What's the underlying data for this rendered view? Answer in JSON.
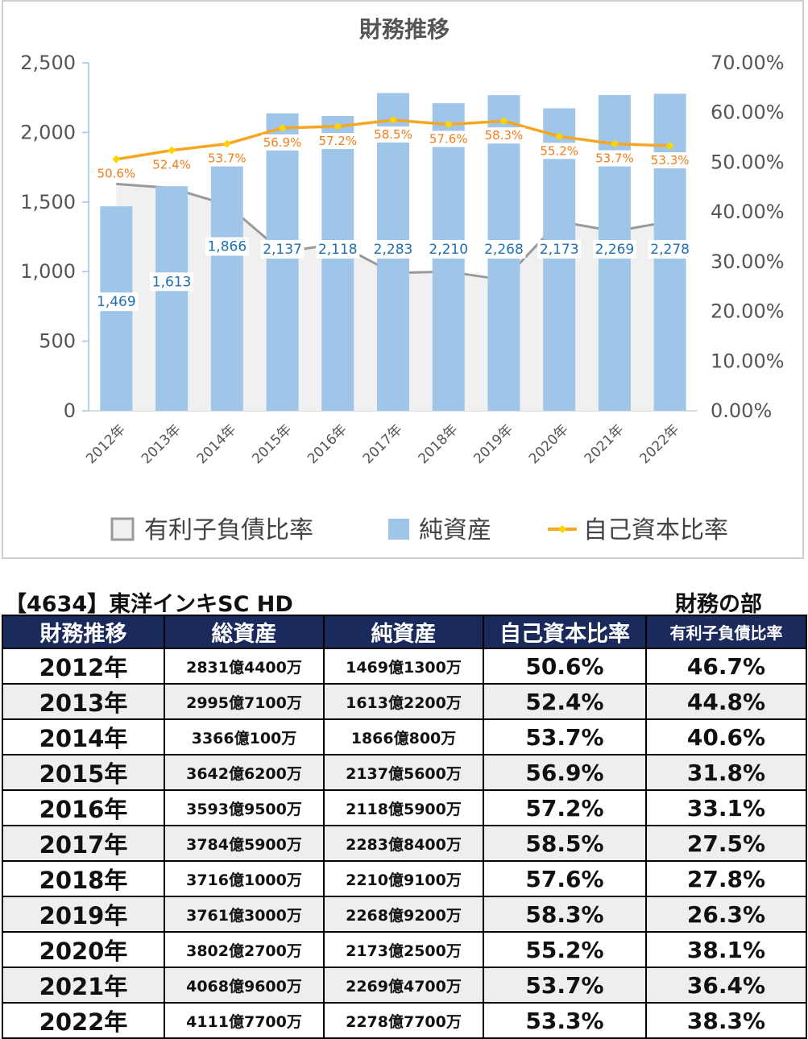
{
  "chart_data": {
    "type": "bar",
    "title": "財務推移",
    "categories": [
      "2012年",
      "2013年",
      "2014年",
      "2015年",
      "2016年",
      "2017年",
      "2018年",
      "2019年",
      "2020年",
      "2021年",
      "2022年"
    ],
    "y_left_ticks": [
      "2,500",
      "2,000",
      "1,500",
      "1,000",
      "500",
      "0"
    ],
    "y_right_ticks": [
      "70.00%",
      "60.00%",
      "50.00%",
      "40.00%",
      "30.00%",
      "20.00%",
      "10.00%",
      "0.00%"
    ],
    "ylim_left": [
      0,
      2500
    ],
    "ylim_right": [
      0,
      70
    ],
    "series": [
      {
        "name": "有利子負債比率",
        "kind": "area",
        "axis": "left",
        "color": "#999999",
        "values": [
          1630,
          1600,
          1480,
          1140,
          1200,
          990,
          1000,
          940,
          1360,
          1290,
          1360
        ]
      },
      {
        "name": "純資産",
        "kind": "bar",
        "axis": "left",
        "color": "#9fc5e8",
        "values": [
          1469,
          1613,
          1866,
          2137,
          2118,
          2283,
          2210,
          2268,
          2173,
          2269,
          2278
        ],
        "labels": [
          "1,469",
          "1,613",
          "1,866",
          "2,137",
          "2,118",
          "2,283",
          "2,210",
          "2,268",
          "2,173",
          "2,269",
          "2,278"
        ]
      },
      {
        "name": "自己資本比率",
        "kind": "line",
        "axis": "right",
        "color": "#f5a623",
        "values": [
          50.6,
          52.4,
          53.7,
          56.9,
          57.2,
          58.5,
          57.6,
          58.3,
          55.2,
          53.7,
          53.3
        ],
        "labels": [
          "50.6%",
          "52.4%",
          "53.7%",
          "56.9%",
          "57.2%",
          "58.5%",
          "57.6%",
          "58.3%",
          "55.2%",
          "53.7%",
          "53.3%"
        ]
      }
    ],
    "legend_position": "bottom"
  },
  "table": {
    "title": "【4634】東洋インキSC HD",
    "dept": "財務の部",
    "headers": [
      "財務推移",
      "総資産",
      "純資産",
      "自己資本比率",
      "有利子負債比率"
    ],
    "rows": [
      [
        "2012年",
        "2831億4400万",
        "1469億1300万",
        "50.6%",
        "46.7%"
      ],
      [
        "2013年",
        "2995億7100万",
        "1613億2200万",
        "52.4%",
        "44.8%"
      ],
      [
        "2014年",
        "3366億100万",
        "1866億800万",
        "53.7%",
        "40.6%"
      ],
      [
        "2015年",
        "3642億6200万",
        "2137億5600万",
        "56.9%",
        "31.8%"
      ],
      [
        "2016年",
        "3593億9500万",
        "2118億5900万",
        "57.2%",
        "33.1%"
      ],
      [
        "2017年",
        "3784億5900万",
        "2283億8400万",
        "58.5%",
        "27.5%"
      ],
      [
        "2018年",
        "3716億1000万",
        "2210億9100万",
        "57.6%",
        "27.8%"
      ],
      [
        "2019年",
        "3761億3000万",
        "2268億9200万",
        "58.3%",
        "26.3%"
      ],
      [
        "2020年",
        "3802億2700万",
        "2173億2500万",
        "55.2%",
        "38.1%"
      ],
      [
        "2021年",
        "4068億9600万",
        "2269億4700万",
        "53.7%",
        "36.4%"
      ],
      [
        "2022年",
        "4111億7700万",
        "2278億7700万",
        "53.3%",
        "38.3%"
      ]
    ]
  }
}
